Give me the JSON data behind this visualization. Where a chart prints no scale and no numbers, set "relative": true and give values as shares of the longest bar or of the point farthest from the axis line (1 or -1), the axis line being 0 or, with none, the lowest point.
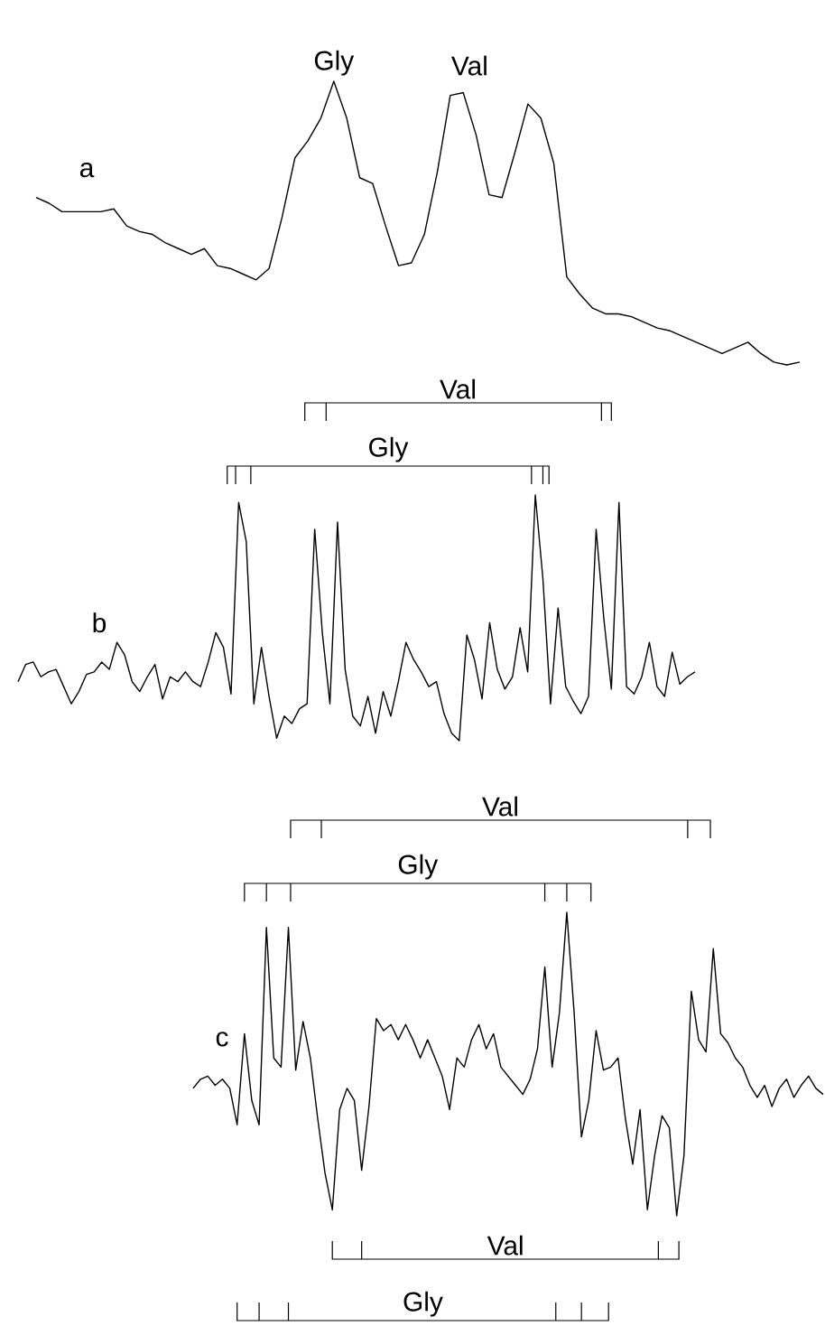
{
  "chart_data": [
    {
      "type": "line",
      "relative": true,
      "title": "a",
      "color": "#000000",
      "categories": [
        null,
        null,
        null,
        null,
        null,
        null,
        null,
        null,
        null,
        null,
        null,
        null,
        null,
        null,
        null,
        null,
        null,
        null,
        null,
        null,
        null,
        null,
        null,
        null,
        null,
        null,
        null,
        null,
        null,
        null,
        null,
        null,
        null,
        null,
        null,
        null,
        null,
        null,
        null,
        null,
        null,
        null,
        null,
        null,
        null,
        null,
        null,
        null,
        null,
        null,
        null,
        null,
        null,
        null,
        null,
        null,
        null,
        null,
        null,
        null
      ],
      "values": [
        0.59,
        0.57,
        0.54,
        0.54,
        0.54,
        0.54,
        0.55,
        0.49,
        0.47,
        0.46,
        0.43,
        0.41,
        0.39,
        0.41,
        0.35,
        0.34,
        0.32,
        0.3,
        0.34,
        0.52,
        0.73,
        0.79,
        0.87,
        1,
        0.87,
        0.66,
        0.64,
        0.49,
        0.35,
        0.36,
        0.46,
        0.68,
        0.95,
        0.96,
        0.81,
        0.6,
        0.59,
        0.75,
        0.92,
        0.87,
        0.71,
        0.31,
        0.25,
        0.2,
        0.18,
        0.18,
        0.17,
        0.15,
        0.13,
        0.12,
        0.1,
        0.08,
        0.06,
        0.04,
        0.06,
        0.08,
        0.04,
        0.01,
        0,
        0.01
      ],
      "annotations": [
        "Gly",
        "Val"
      ]
    },
    {
      "type": "line",
      "relative": true,
      "title": "b",
      "color": "#000000",
      "categories": [
        null,
        null,
        null,
        null,
        null,
        null,
        null,
        null,
        null,
        null,
        null,
        null,
        null,
        null,
        null,
        null,
        null,
        null,
        null,
        null,
        null,
        null,
        null,
        null,
        null,
        null,
        null,
        null,
        null,
        null,
        null,
        null,
        null,
        null,
        null,
        null,
        null,
        null,
        null,
        null,
        null,
        null,
        null,
        null,
        null,
        null,
        null,
        null,
        null,
        null,
        null,
        null,
        null,
        null,
        null,
        null,
        null,
        null,
        null,
        null,
        null,
        null,
        null,
        null,
        null,
        null,
        null,
        null,
        null,
        null,
        null,
        null,
        null,
        null,
        null,
        null,
        null,
        null,
        null,
        null,
        null,
        null,
        null,
        null,
        null,
        null,
        null,
        null,
        null,
        null
      ],
      "values": [
        0.24,
        0.31,
        0.32,
        0.26,
        0.28,
        0.29,
        0.22,
        0.15,
        0.2,
        0.27,
        0.28,
        0.32,
        0.29,
        0.4,
        0.35,
        0.24,
        0.2,
        0.26,
        0.31,
        0.17,
        0.26,
        0.24,
        0.28,
        0.24,
        0.22,
        0.32,
        0.44,
        0.38,
        0.19,
        0.97,
        0.81,
        0.15,
        0.38,
        0.18,
        0.01,
        0.1,
        0.07,
        0.13,
        0.15,
        0.86,
        0.44,
        0.15,
        0.89,
        0.29,
        0.1,
        0.06,
        0.18,
        0.03,
        0.2,
        0.1,
        0.24,
        0.4,
        0.33,
        0.28,
        0.22,
        0.24,
        0.11,
        0.03,
        0,
        0.43,
        0.33,
        0.17,
        0.48,
        0.29,
        0.21,
        0.26,
        0.46,
        0.28,
        1,
        0.66,
        0.15,
        0.54,
        0.22,
        0.16,
        0.11,
        0.18,
        0.86,
        0.5,
        0.21,
        0.97,
        0.22,
        0.19,
        0.26,
        0.4,
        0.22,
        0.18,
        0.36,
        0.23,
        0.26,
        0.28
      ],
      "annotations": [
        "Gly",
        "Val"
      ]
    },
    {
      "type": "line",
      "relative": true,
      "title": "c",
      "color": "#000000",
      "categories": [
        null,
        null,
        null,
        null,
        null,
        null,
        null,
        null,
        null,
        null,
        null,
        null,
        null,
        null,
        null,
        null,
        null,
        null,
        null,
        null,
        null,
        null,
        null,
        null,
        null,
        null,
        null,
        null,
        null,
        null,
        null,
        null,
        null,
        null,
        null,
        null,
        null,
        null,
        null,
        null,
        null,
        null,
        null,
        null,
        null,
        null,
        null,
        null,
        null,
        null,
        null,
        null,
        null,
        null,
        null,
        null,
        null,
        null,
        null,
        null,
        null,
        null,
        null,
        null,
        null,
        null,
        null,
        null,
        null,
        null,
        null,
        null,
        null,
        null,
        null,
        null,
        null,
        null,
        null,
        null,
        null,
        null,
        null,
        null,
        null,
        null,
        null
      ],
      "values": [
        0.42,
        0.45,
        0.46,
        0.43,
        0.45,
        0.42,
        0.3,
        0.6,
        0.38,
        0.3,
        0.95,
        0.52,
        0.49,
        0.95,
        0.48,
        0.64,
        0.52,
        0.32,
        0.14,
        0.02,
        0.35,
        0.42,
        0.38,
        0.15,
        0.36,
        0.65,
        0.61,
        0.63,
        0.58,
        0.63,
        0.58,
        0.52,
        0.58,
        0.52,
        0.46,
        0.35,
        0.52,
        0.49,
        0.58,
        0.63,
        0.55,
        0.6,
        0.49,
        0.46,
        0.43,
        0.4,
        0.45,
        0.55,
        0.82,
        0.49,
        0.67,
        1,
        0.67,
        0.26,
        0.38,
        0.61,
        0.48,
        0.49,
        0.52,
        0.32,
        0.17,
        0.35,
        0.02,
        0.2,
        0.33,
        0.29,
        0,
        0.2,
        0.74,
        0.58,
        0.54,
        0.88,
        0.6,
        0.57,
        0.52,
        0.49,
        0.43,
        0.39,
        0.43,
        0.36,
        0.42,
        0.45,
        0.39,
        0.43,
        0.46,
        0.42,
        0.4
      ],
      "annotations": [
        "Val",
        "Gly",
        "Val",
        "Gly"
      ]
    }
  ]
}
